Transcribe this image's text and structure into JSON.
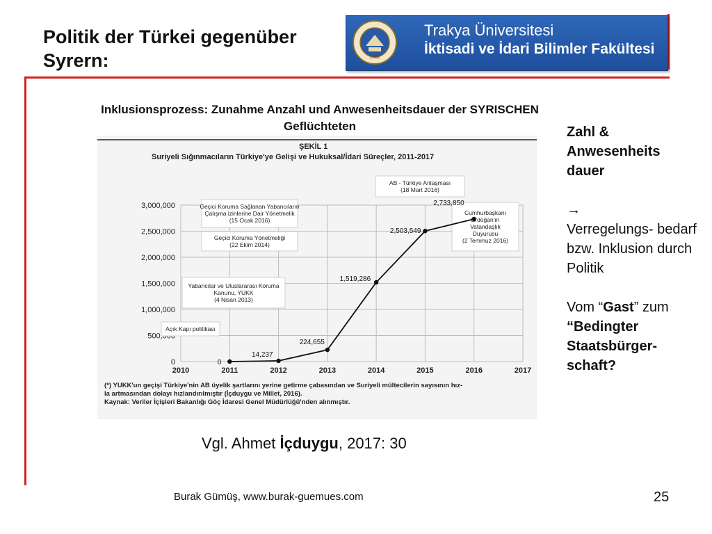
{
  "slide": {
    "title": "Politik der Türkei gegenüber Syrern:",
    "subtitle": "Inklusionsprozess: Zunahme Anzahl und Anwesenheitsdauer der SYRISCHEN Geflüchteten",
    "logo": {
      "line1": "Trakya Üniversitesi",
      "line2": "İktisadi ve İdari Bilimler Fakültesi",
      "seal_text": "TRAKYA ÜNİVERSİTESİ",
      "seal_year": "1982"
    },
    "side_text": {
      "heading": "Zahl & Anwesenheits dauer",
      "arrow": "→",
      "para1": "Verregelungs- bedarf bzw. Inklusion durch Politik",
      "para2_prefix": "Vom “",
      "para2_bold": "Gast",
      "para2_suffix": "” zum",
      "para3_bold": "“Bedingter Staatsbürger- schaft?"
    },
    "citation": {
      "prefix": "Vgl. Ahmet ",
      "bold": "İçduygu",
      "suffix": ", 2017: 30"
    },
    "footer": "Burak Gümüş, www.burak-guemues.com",
    "page_number": "25",
    "colors": {
      "accent_red": "#d42020",
      "logo_blue": "#1d4f9d"
    }
  },
  "chart_data": {
    "type": "line",
    "figure_label": "ŞEKİL 1",
    "title": "Suriyeli Sığınmacıların Türkiye'ye Gelişi ve Hukuksal/İdari Süreçler, 2011-2017",
    "x": [
      2011,
      2012,
      2013,
      2014,
      2015,
      2016
    ],
    "x_ticks": [
      "2010",
      "2011",
      "2012",
      "2013",
      "2014",
      "2015",
      "2016",
      "2017"
    ],
    "y_ticks": [
      "0",
      "500,000",
      "1,000,000",
      "1,500,000",
      "2,000,000",
      "2,500,000",
      "3,000,000"
    ],
    "values": [
      0,
      14237,
      224655,
      1519286,
      2503549,
      2733850
    ],
    "data_labels": [
      "0",
      "14,237",
      "224,655",
      "1,519,286",
      "2,503,549",
      "2,733,850"
    ],
    "xlim": [
      2010,
      2017
    ],
    "ylim": [
      0,
      3000000
    ],
    "grid": true,
    "annotations": [
      {
        "lines": [
          "AB - Türkiye Anlaşması",
          "(18 Mart 2016)"
        ]
      },
      {
        "lines": [
          "Geçici Koruma Sağlanan Yabancıların",
          "Çalışma izinlerine Dair Yönetmelik",
          "(15 Ocak 2016)"
        ]
      },
      {
        "lines": [
          "Geçici Koruma Yönetmeliği",
          "(22 Ekim 2014)"
        ]
      },
      {
        "lines": [
          "Cumhurbaşkanı",
          "Erdoğan'ın",
          "Vatandaşlık",
          "Duyurusu",
          "(2 Temmuz 2016)"
        ]
      },
      {
        "lines": [
          "Yabancılar ve Uluslararası Koruma",
          "Kanunu, YUKK",
          "(4 Nisan 2013)"
        ]
      },
      {
        "lines": [
          "Açık Kapı politikası"
        ]
      }
    ],
    "footnotes": [
      "(*)  YUKK'un geçişi Türkiye'nin AB üyelik şartlarını yerine getirme çabasından ve Suriyeli mültecilerin sayısının hız-",
      "la artmasından dolayı hızlandırılmıştır (İçduygu ve Millet, 2016).",
      "Kaynak: Veriler İçişleri Bakanlığı Göç İdaresi Genel Müdürlüğü'nden alınmıştır."
    ]
  }
}
